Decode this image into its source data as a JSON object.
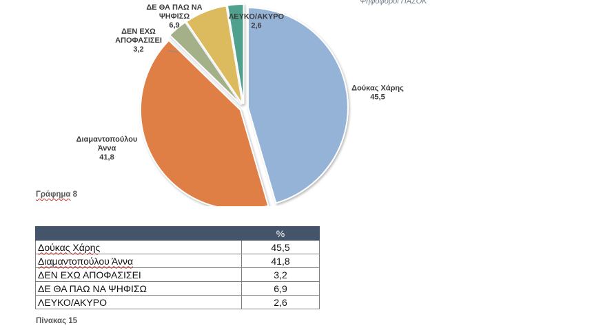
{
  "header": {
    "caption": "Ψηφοφόροι ΠΑΣΟΚ"
  },
  "chart_data": {
    "type": "pie",
    "title": "",
    "slices": [
      {
        "label_lines": [
          "Δούκας Χάρης"
        ],
        "value": 45.5,
        "color": "#95b3d7"
      },
      {
        "label_lines": [
          "Διαμαντοπούλου",
          "Άννα"
        ],
        "value": 41.8,
        "color": "#e07f45"
      },
      {
        "label_lines": [
          "ΔΕΝ ΕΧΩ",
          "ΑΠΟΦΑΣΙΣΕΙ"
        ],
        "value": 3.2,
        "color": "#a4b088"
      },
      {
        "label_lines": [
          "ΔΕ ΘΑ ΠΑΩ ΝΑ",
          "ΨΗΦΙΣΩ"
        ],
        "value": 6.9,
        "color": "#dcbb5e"
      },
      {
        "label_lines": [
          "ΛΕΥΚΟ/ΑΚΥΡΟ"
        ],
        "value": 2.6,
        "color": "#4fa08c"
      }
    ]
  },
  "chart_caption": {
    "word": "Γράφημα",
    "number": "8"
  },
  "table": {
    "header": [
      "",
      "%"
    ],
    "rows": [
      {
        "name": "Δούκας Χάρης",
        "value": "45,5"
      },
      {
        "name": "Διαμαντοπούλου Άννα",
        "value": "41,8"
      },
      {
        "name": "ΔΕΝ ΕΧΩ ΑΠΟΦΑΣΙΣΕΙ",
        "value": "3,2"
      },
      {
        "name": "ΔΕ ΘΑ ΠΑΩ ΝΑ ΨΗΦΙΣΩ",
        "value": "6,9"
      },
      {
        "name": "ΛΕΥΚΟ/ΑΚΥΡΟ",
        "value": "2,6"
      }
    ]
  },
  "table_caption": "Πίνακας 15"
}
